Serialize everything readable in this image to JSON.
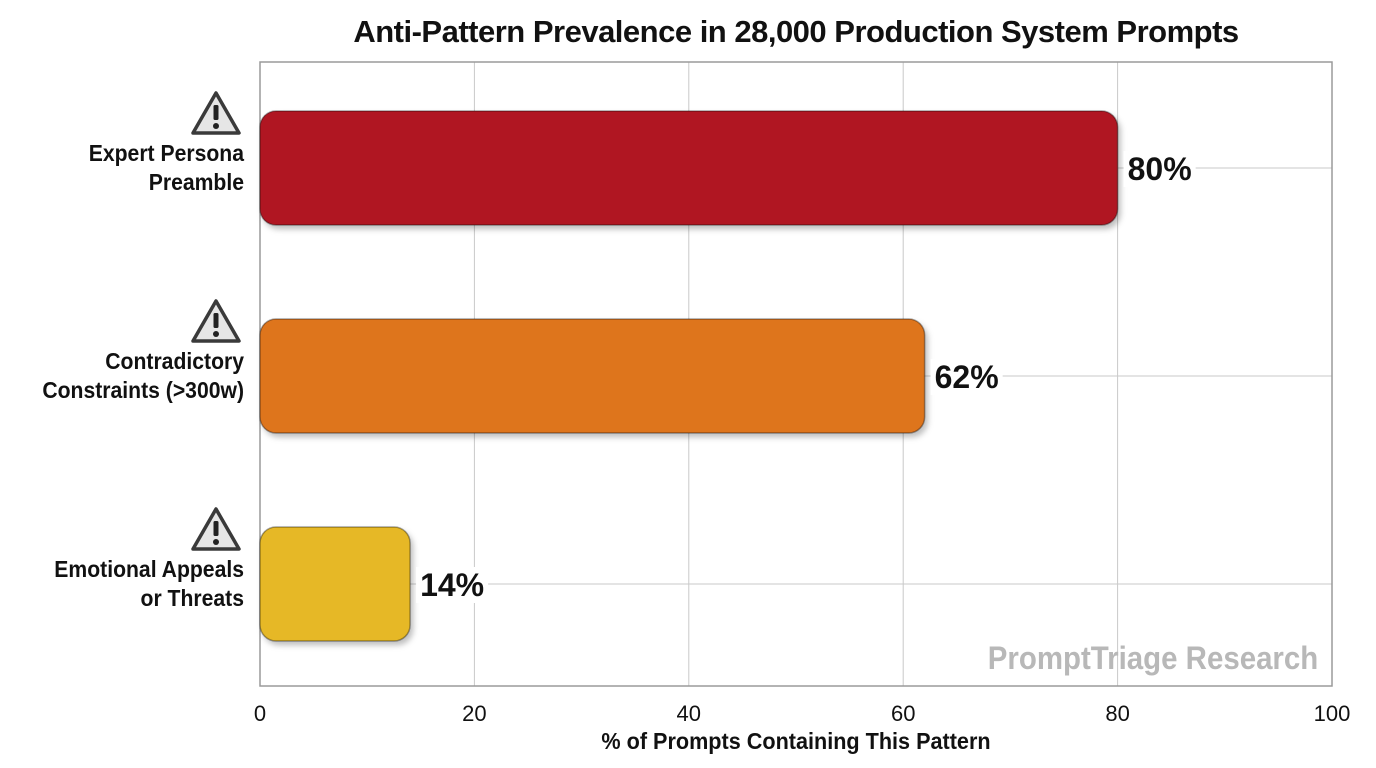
{
  "chart_data": {
    "type": "bar",
    "orientation": "horizontal",
    "title": "Anti-Pattern Prevalence in 28,000 Production System Prompts",
    "xlabel": "% of Prompts Containing This Pattern",
    "ylabel": "",
    "xlim": [
      0,
      100
    ],
    "x_ticks": [
      0,
      20,
      40,
      60,
      80,
      100
    ],
    "categories": [
      [
        "Expert Persona",
        "Preamble"
      ],
      [
        "Contradictory",
        "Constraints (>300w)"
      ],
      [
        "Emotional Appeals",
        "or Threats"
      ]
    ],
    "values": [
      80,
      62,
      14
    ],
    "data_labels": [
      "80%",
      "62%",
      "14%"
    ],
    "bar_colors": [
      "#b01824",
      "#de741c",
      "#e6b825"
    ],
    "grid": true,
    "legend": "none",
    "category_icon": "warning-triangle-icon",
    "watermark": "PromptTriage Research"
  }
}
